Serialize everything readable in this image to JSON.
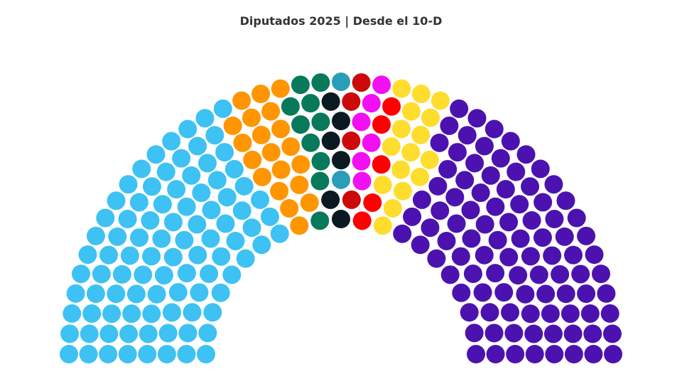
{
  "chart_data": {
    "type": "parliament",
    "title": "Diputados 2025 | Desde el 10-D",
    "total_seats": 257,
    "rows": 8,
    "series": [
      {
        "seats": 93,
        "color": "#3EC1F3"
      },
      {
        "seats": 20,
        "color": "#FF9500"
      },
      {
        "seats": 10,
        "color": "#08795A"
      },
      {
        "seats": 6,
        "color": "#0B1A22"
      },
      {
        "seats": 2,
        "color": "#2A9DB8"
      },
      {
        "seats": 4,
        "color": "#CC0A0A"
      },
      {
        "seats": 6,
        "color": "#F20FF2"
      },
      {
        "seats": 5,
        "color": "#FF0000"
      },
      {
        "seats": 16,
        "color": "#FFDD2E"
      },
      {
        "seats": 95,
        "color": "#4C12B0"
      }
    ]
  }
}
